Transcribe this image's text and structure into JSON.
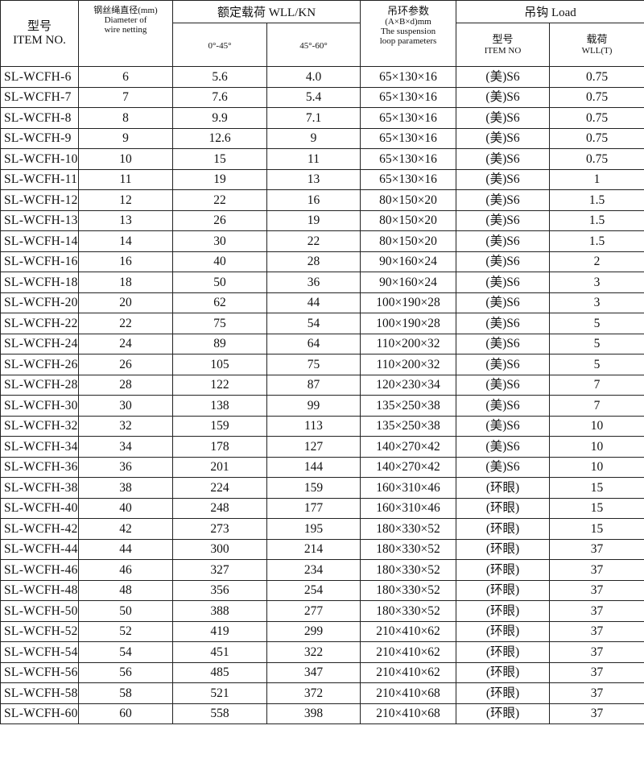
{
  "header": {
    "item_no": [
      "型号",
      "ITEM NO."
    ],
    "diameter": [
      "钢丝绳直径(mm)",
      "Diameter of",
      "wire netting"
    ],
    "rated_load": "额定载荷 WLL/KN",
    "angle_ranges": [
      "0°-45°",
      "45°-60°"
    ],
    "loop_params": [
      "吊环参数",
      "(A×B×d)mm",
      "The suspension",
      "loop parameters"
    ],
    "hook": "吊钩 Load",
    "hook_type": [
      "型号",
      "ITEM NO"
    ],
    "hook_load": [
      "载荷",
      "WLL(T)"
    ]
  },
  "table": {
    "rows": [
      [
        "SL-WCFH-6",
        "6",
        "5.6",
        "4.0",
        "65×130×16",
        "(美)S6",
        "0.75"
      ],
      [
        "SL-WCFH-7",
        "7",
        "7.6",
        "5.4",
        "65×130×16",
        "(美)S6",
        "0.75"
      ],
      [
        "SL-WCFH-8",
        "8",
        "9.9",
        "7.1",
        "65×130×16",
        "(美)S6",
        "0.75"
      ],
      [
        "SL-WCFH-9",
        "9",
        "12.6",
        "9",
        "65×130×16",
        "(美)S6",
        "0.75"
      ],
      [
        "SL-WCFH-10",
        "10",
        "15",
        "11",
        "65×130×16",
        "(美)S6",
        "0.75"
      ],
      [
        "SL-WCFH-11",
        "11",
        "19",
        "13",
        "65×130×16",
        "(美)S6",
        "1"
      ],
      [
        "SL-WCFH-12",
        "12",
        "22",
        "16",
        "80×150×20",
        "(美)S6",
        "1.5"
      ],
      [
        "SL-WCFH-13",
        "13",
        "26",
        "19",
        "80×150×20",
        "(美)S6",
        "1.5"
      ],
      [
        "SL-WCFH-14",
        "14",
        "30",
        "22",
        "80×150×20",
        "(美)S6",
        "1.5"
      ],
      [
        "SL-WCFH-16",
        "16",
        "40",
        "28",
        "90×160×24",
        "(美)S6",
        "2"
      ],
      [
        "SL-WCFH-18",
        "18",
        "50",
        "36",
        "90×160×24",
        "(美)S6",
        "3"
      ],
      [
        "SL-WCFH-20",
        "20",
        "62",
        "44",
        "100×190×28",
        "(美)S6",
        "3"
      ],
      [
        "SL-WCFH-22",
        "22",
        "75",
        "54",
        "100×190×28",
        "(美)S6",
        "5"
      ],
      [
        "SL-WCFH-24",
        "24",
        "89",
        "64",
        "110×200×32",
        "(美)S6",
        "5"
      ],
      [
        "SL-WCFH-26",
        "26",
        "105",
        "75",
        "110×200×32",
        "(美)S6",
        "5"
      ],
      [
        "SL-WCFH-28",
        "28",
        "122",
        "87",
        "120×230×34",
        "(美)S6",
        "7"
      ],
      [
        "SL-WCFH-30",
        "30",
        "138",
        "99",
        "135×250×38",
        "(美)S6",
        "7"
      ],
      [
        "SL-WCFH-32",
        "32",
        "159",
        "113",
        "135×250×38",
        "(美)S6",
        "10"
      ],
      [
        "SL-WCFH-34",
        "34",
        "178",
        "127",
        "140×270×42",
        "(美)S6",
        "10"
      ],
      [
        "SL-WCFH-36",
        "36",
        "201",
        "144",
        "140×270×42",
        "(美)S6",
        "10"
      ],
      [
        "SL-WCFH-38",
        "38",
        "224",
        "159",
        "160×310×46",
        "(环眼)",
        "15"
      ],
      [
        "SL-WCFH-40",
        "40",
        "248",
        "177",
        "160×310×46",
        "(环眼)",
        "15"
      ],
      [
        "SL-WCFH-42",
        "42",
        "273",
        "195",
        "180×330×52",
        "(环眼)",
        "15"
      ],
      [
        "SL-WCFH-44",
        "44",
        "300",
        "214",
        "180×330×52",
        "(环眼)",
        "37"
      ],
      [
        "SL-WCFH-46",
        "46",
        "327",
        "234",
        "180×330×52",
        "(环眼)",
        "37"
      ],
      [
        "SL-WCFH-48",
        "48",
        "356",
        "254",
        "180×330×52",
        "(环眼)",
        "37"
      ],
      [
        "SL-WCFH-50",
        "50",
        "388",
        "277",
        "180×330×52",
        "(环眼)",
        "37"
      ],
      [
        "SL-WCFH-52",
        "52",
        "419",
        "299",
        "210×410×62",
        "(环眼)",
        "37"
      ],
      [
        "SL-WCFH-54",
        "54",
        "451",
        "322",
        "210×410×62",
        "(环眼)",
        "37"
      ],
      [
        "SL-WCFH-56",
        "56",
        "485",
        "347",
        "210×410×62",
        "(环眼)",
        "37"
      ],
      [
        "SL-WCFH-58",
        "58",
        "521",
        "372",
        "210×410×68",
        "(环眼)",
        "37"
      ],
      [
        "SL-WCFH-60",
        "60",
        "558",
        "398",
        "210×410×68",
        "(环眼)",
        "37"
      ]
    ]
  }
}
